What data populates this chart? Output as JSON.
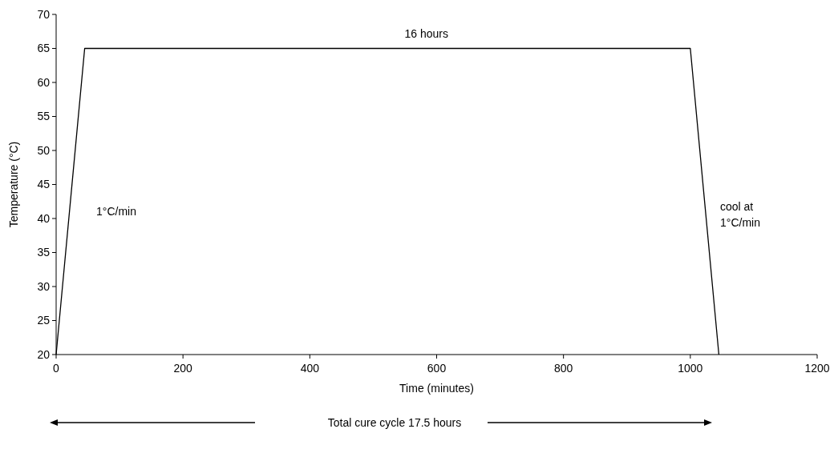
{
  "chart_data": {
    "type": "line",
    "xlabel": "Time (minutes)",
    "ylabel": "Temperature (°C)",
    "x": [
      0,
      45,
      1000,
      1045
    ],
    "series": [
      {
        "color": "#000000",
        "values": [
          20,
          65,
          65,
          20
        ]
      }
    ],
    "xlim": [
      0,
      1200
    ],
    "xticks": [
      0,
      200,
      400,
      600,
      800,
      1000,
      1200
    ],
    "ylim": [
      20,
      70
    ],
    "yticks": [
      20,
      25,
      30,
      35,
      40,
      45,
      50,
      55,
      60,
      65,
      70
    ],
    "grid": false,
    "marker": "none",
    "line_style": "solid",
    "annotations": [
      "16 hours",
      "1°C/min",
      "cool at\n1°C/min",
      "Total cure cycle 17.5 hours"
    ]
  }
}
